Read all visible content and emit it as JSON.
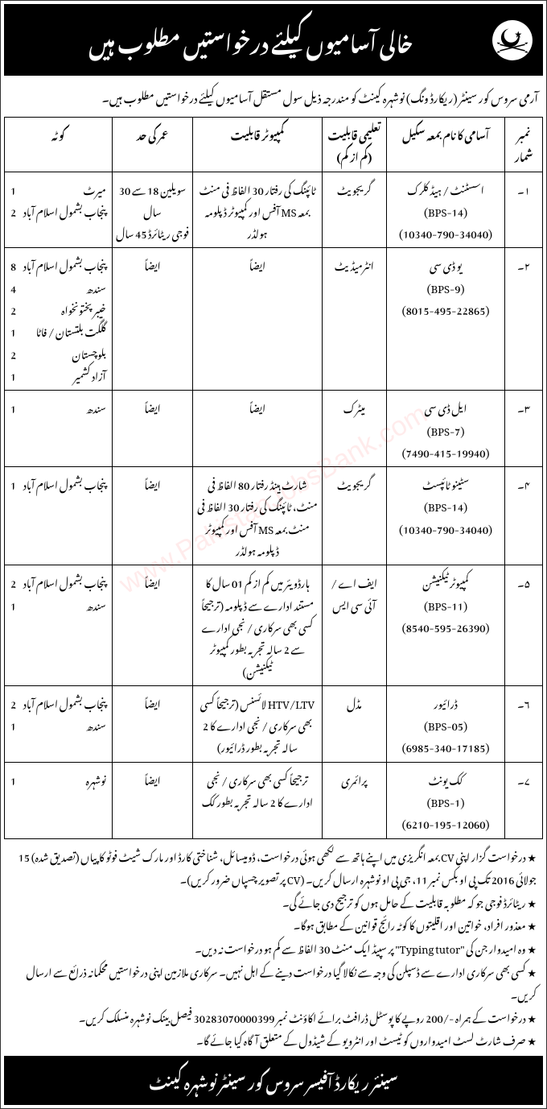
{
  "header": {
    "title": "خالی آسامیوں کیلئے درخواستیں مطلوب ہیں"
  },
  "intro": "آرمی سروس کور سینٹر (ریکارڈ ونگ) نوشہرہ کینٹ کو مندرجہ ذیل سول مستقل آسامیوں کیلئے درخواستیں مطلوب ہیں۔",
  "columns": {
    "sr": "نمبر شمار",
    "name": "آسامی کا نام بمعہ سکیل",
    "edu": "تعلیمی قابلیت (کم از کم)",
    "comp": "کمپیوٹر قابلیت",
    "age": "عمر کی حد",
    "quota": "کوٹہ"
  },
  "rows": [
    {
      "sr": "۱۔",
      "name": "اسسٹنٹ / ہیڈ کلرک\n(BPS-14)\n(10340-790-34040)",
      "edu": "گریجویٹ",
      "comp": "ٹائپنگ کی رفتار 30 الفاظ فی منٹ بمعہ MS آفس اور کمپیوٹر ڈپلومہ ہولڈر",
      "age": "سویلین 18 سے 30 سال\nفوجی ریٹائرڈ 45 سال",
      "quota": [
        {
          "area": "میرٹ",
          "n": "1"
        },
        {
          "area": "پنجاب بشمول اسلام آباد",
          "n": "2"
        }
      ]
    },
    {
      "sr": "۲۔",
      "name": "یو ڈی سی\n(BPS-9)\n(8015-495-22865)",
      "edu": "انٹرمیڈیٹ",
      "comp": "ایضاً",
      "age": "ایضاً",
      "quota": [
        {
          "area": "پنجاب بشمول اسلام آباد",
          "n": "8"
        },
        {
          "area": "سندھ",
          "n": "4"
        },
        {
          "area": "خیبر پختونخواہ",
          "n": "2"
        },
        {
          "area": "گلگت بلتستان / فاٹا",
          "n": "1"
        },
        {
          "area": "بلوچستان",
          "n": "2"
        },
        {
          "area": "آزاد کشمیر",
          "n": "1"
        }
      ]
    },
    {
      "sr": "۳۔",
      "name": "ایل ڈی سی\n(BPS-7)\n(7490-415-19940)",
      "edu": "میٹرک",
      "comp": "ایضاً",
      "age": "ایضاً",
      "quota": [
        {
          "area": "سندھ",
          "n": "1"
        }
      ]
    },
    {
      "sr": "۴۔",
      "name": "سٹینو ٹائپسٹ\n(BPS-14)\n(10340-790-34040)",
      "edu": "گریجویٹ",
      "comp": "شارٹ ہینڈ رفتار 80 الفاظ فی منٹ، ٹائپنگ کی رفتار 30 الفاظ فی منٹ بمعہ MS آفس اور کمپیوٹر ڈپلومہ ہولڈر",
      "age": "ایضاً",
      "quota": [
        {
          "area": "پنجاب بشمول اسلام آباد",
          "n": "1"
        }
      ]
    },
    {
      "sr": "۵۔",
      "name": "کمپیوٹر ٹیکنیشن\n(BPS-11)\n(8540-595-26390)",
      "edu": "ایف اے / آئی سی ایس",
      "comp": "ہارڈویئر میں کم از کم 01 سال کا مستند ادارے سے ڈپلومہ (ترجیحاً کسی بھی سرکاری / نجی ادارے سے 2 سالہ تجربہ بطور کمپیوٹر ٹیکنیشن)",
      "age": "ایضاً",
      "quota": [
        {
          "area": "پنجاب بشمول اسلام آباد",
          "n": "2"
        },
        {
          "area": "سندھ",
          "n": "1"
        }
      ]
    },
    {
      "sr": "۶۔",
      "name": "ڈرائیور\n(BPS-05)\n(6985-340-17185)",
      "edu": "مڈل",
      "comp": "HTV/LTV لائسنس (ترجیحاً کسی بھی سرکاری / نجی ادارے کا 2 سالہ تجربہ بطور ڈرائیور)",
      "age": "ایضاً",
      "quota": [
        {
          "area": "پنجاب بشمول اسلام آباد",
          "n": "2"
        },
        {
          "area": "سندھ",
          "n": "1"
        }
      ]
    },
    {
      "sr": "۷۔",
      "name": "کک یونٹ\n(BPS-1)\n(6210-195-12060)",
      "edu": "پرائمری",
      "comp": "ترجیحاً کسی بھی سرکاری / نجی ادارے کا 2 سالہ تجربہ بطور کک",
      "age": "ایضاً",
      "quota": [
        {
          "area": "نوشہرہ",
          "n": "1"
        }
      ]
    }
  ],
  "notes": [
    "درخواست گزار اپنی CV بمعہ انگریزی میں اپنے ہاتھ سے لکھی ہوئی درخواست، ڈومیسائل، شناختی کارڈ اور مارک شیٹ فوٹو کاپیاں (تصدیق شدہ) 15 جولائی 2016 تک پی او بکس نمبر 11، جی پی او نوشہرہ ارسال کریں۔ (CV پر تصویر چسپاں ضرور کریں)۔",
    "ریٹائرڈ فوجی جو کہ مطلوبہ قابلیت کے حامل ہوں کو ترجیح دی جائے گی۔",
    "معذور افراد، خواتین اور اقلیتوں کا کوٹہ رائج قوانین کے مطابق ہوگا۔",
    "وہ امیدوار جن کی \"Typing tutor\" پر سپیڈ ایک منٹ 30 الفاظ سے کم ہو درخواست نہ دیں۔",
    "کسی بھی سرکاری ادارے سے ڈسپلن کی وجہ سے نکالا گیا درخواست دینے کے اہل نہیں۔ سرکاری ملازمین اپنی درخواستیں محکمانہ ذرائع سے ارسال کریں۔",
    "درخواست کے ہمراہ -/200 روپے کا پوسٹل ڈرافٹ برائے اکاؤنٹ نمبر 30283070000399 فیصل بینک نوشہرہ منسلک کریں۔",
    "صرف شارٹ لسٹ امیدواروں کو ٹیسٹ اور انٹرویو کے شیڈول کے متعلق آگاہ کیا جائے گا۔"
  ],
  "footer": "سینئر ریکارڈ آفیسر سروس کور سینٹر نوشہرہ کینٹ",
  "watermark": "www.PakistanJobsBank.com",
  "colors": {
    "header_bg": "#000000",
    "header_fg": "#ffffff",
    "border": "#000000",
    "page_bg": "#ffffff",
    "watermark": "rgba(255,0,0,0.08)"
  }
}
